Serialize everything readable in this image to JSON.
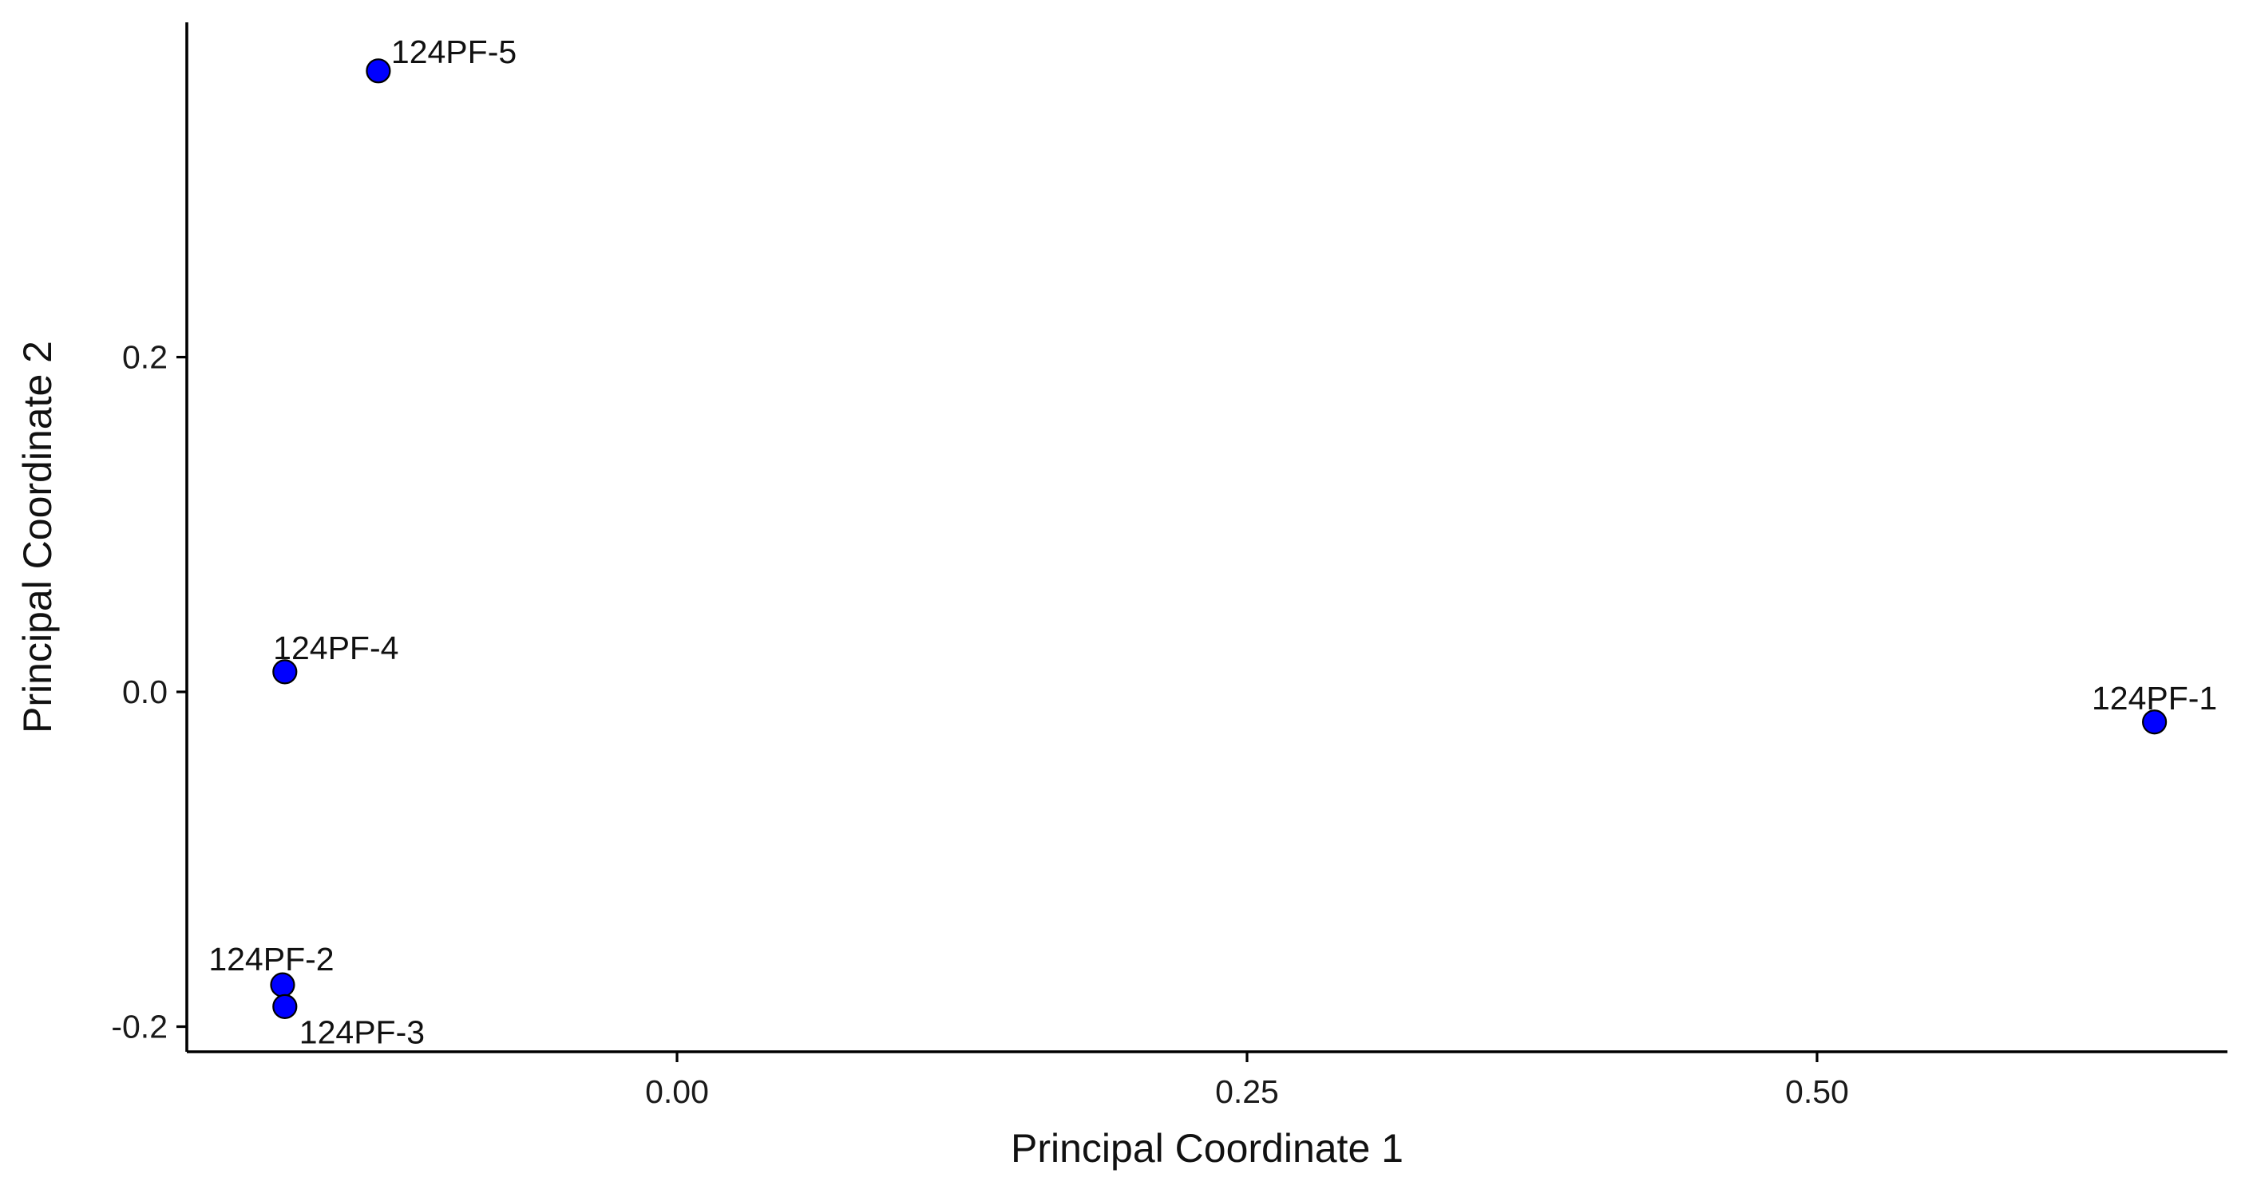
{
  "chart_data": {
    "type": "scatter",
    "title": "",
    "xlabel": "Principal Coordinate 1",
    "ylabel": "Principal Coordinate 2",
    "xlim": [
      -0.215,
      0.68
    ],
    "ylim": [
      -0.215,
      0.4
    ],
    "x_ticks": [
      {
        "value": 0.0,
        "label": "0.00"
      },
      {
        "value": 0.25,
        "label": "0.25"
      },
      {
        "value": 0.5,
        "label": "0.50"
      }
    ],
    "y_ticks": [
      {
        "value": -0.2,
        "label": "-0.2"
      },
      {
        "value": 0.0,
        "label": "0.0"
      },
      {
        "value": 0.2,
        "label": "0.2"
      }
    ],
    "grid": false,
    "legend": "none",
    "point_color": "#0000FF",
    "points": [
      {
        "label": "124PF-1",
        "x": 0.648,
        "y": -0.018
      },
      {
        "label": "124PF-2",
        "x": -0.173,
        "y": -0.175
      },
      {
        "label": "124PF-3",
        "x": -0.172,
        "y": -0.188
      },
      {
        "label": "124PF-4",
        "x": -0.172,
        "y": 0.012
      },
      {
        "label": "124PF-5",
        "x": -0.131,
        "y": 0.371
      }
    ]
  }
}
